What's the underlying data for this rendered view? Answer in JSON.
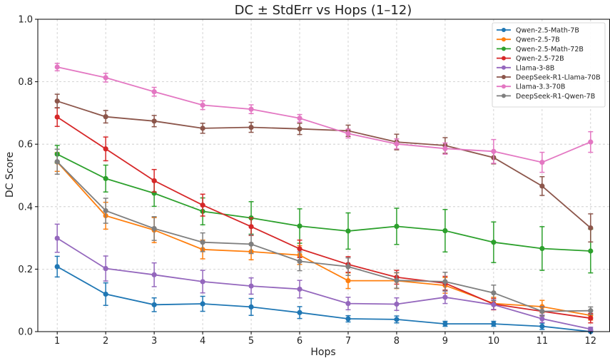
{
  "chart_data": {
    "type": "line",
    "title": "DC ± StdErr vs Hops (1–12)",
    "xlabel": "Hops",
    "ylabel": "DC Score",
    "x": [
      1,
      2,
      3,
      4,
      5,
      6,
      7,
      8,
      9,
      10,
      11,
      12
    ],
    "xlim": [
      0.6,
      12.4
    ],
    "ylim": [
      0,
      1.0
    ],
    "yticks": [
      "0.0",
      "0.2",
      "0.4",
      "0.6",
      "0.8",
      "1.0"
    ],
    "xticks": [
      "1",
      "2",
      "3",
      "4",
      "5",
      "6",
      "7",
      "8",
      "9",
      "10",
      "11",
      "12"
    ],
    "grid": true,
    "legend_position": "top-right",
    "series": [
      {
        "name": "Qwen-2.5-Math-7B",
        "color": "#1f77b4",
        "values": [
          0.208,
          0.12,
          0.086,
          0.089,
          0.079,
          0.061,
          0.041,
          0.039,
          0.025,
          0.025,
          0.017,
          0.0
        ],
        "errors": [
          0.033,
          0.036,
          0.022,
          0.024,
          0.027,
          0.019,
          0.01,
          0.011,
          0.008,
          0.008,
          0.01,
          0.004
        ]
      },
      {
        "name": "Qwen-2.5-7B",
        "color": "#ff7f0e",
        "values": [
          0.543,
          0.371,
          0.325,
          0.263,
          0.256,
          0.245,
          0.163,
          0.163,
          0.148,
          0.09,
          0.08,
          0.052
        ],
        "errors": [
          0.03,
          0.043,
          0.04,
          0.03,
          0.026,
          0.03,
          0.025,
          0.025,
          0.025,
          0.02,
          0.02,
          0.015
        ]
      },
      {
        "name": "Qwen-2.5-Math-72B",
        "color": "#2ca02c",
        "values": [
          0.568,
          0.49,
          0.443,
          0.385,
          0.364,
          0.338,
          0.322,
          0.337,
          0.323,
          0.286,
          0.266,
          0.258
        ],
        "errors": [
          0.028,
          0.043,
          0.042,
          0.043,
          0.052,
          0.055,
          0.058,
          0.058,
          0.068,
          0.065,
          0.07,
          0.07
        ]
      },
      {
        "name": "Qwen-2.5-72B",
        "color": "#d62728",
        "values": [
          0.687,
          0.585,
          0.483,
          0.405,
          0.336,
          0.265,
          0.215,
          0.174,
          0.155,
          0.088,
          0.065,
          0.043
        ],
        "errors": [
          0.03,
          0.038,
          0.036,
          0.035,
          0.028,
          0.028,
          0.025,
          0.022,
          0.022,
          0.018,
          0.015,
          0.015
        ]
      },
      {
        "name": "Llama-3-8B",
        "color": "#9467bd",
        "values": [
          0.299,
          0.202,
          0.182,
          0.16,
          0.146,
          0.136,
          0.09,
          0.088,
          0.11,
          0.086,
          0.041,
          0.008
        ],
        "errors": [
          0.045,
          0.04,
          0.038,
          0.036,
          0.026,
          0.028,
          0.02,
          0.02,
          0.02,
          0.015,
          0.012,
          0.006
        ]
      },
      {
        "name": "DeepSeek-R1-Llama-70B",
        "color": "#8c564b",
        "values": [
          0.738,
          0.688,
          0.674,
          0.651,
          0.654,
          0.649,
          0.643,
          0.607,
          0.596,
          0.557,
          0.466,
          0.332
        ],
        "errors": [
          0.022,
          0.02,
          0.018,
          0.016,
          0.016,
          0.018,
          0.018,
          0.025,
          0.025,
          0.02,
          0.03,
          0.045
        ]
      },
      {
        "name": "Llama-3.3-70B",
        "color": "#e377c2",
        "values": [
          0.847,
          0.813,
          0.768,
          0.725,
          0.712,
          0.683,
          0.634,
          0.601,
          0.586,
          0.577,
          0.542,
          0.607
        ],
        "errors": [
          0.012,
          0.014,
          0.014,
          0.014,
          0.014,
          0.012,
          0.014,
          0.016,
          0.018,
          0.038,
          0.032,
          0.033
        ]
      },
      {
        "name": "DeepSeek-R1-Qwen-7B",
        "color": "#7f7f7f",
        "values": [
          0.544,
          0.387,
          0.33,
          0.286,
          0.28,
          0.225,
          0.208,
          0.164,
          0.16,
          0.124,
          0.065,
          0.067
        ],
        "errors": [
          0.04,
          0.04,
          0.038,
          0.03,
          0.03,
          0.03,
          0.028,
          0.025,
          0.03,
          0.025,
          0.015,
          0.012
        ]
      }
    ]
  }
}
